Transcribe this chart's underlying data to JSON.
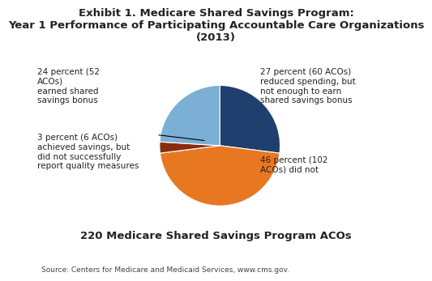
{
  "title": "Exhibit 1. Medicare Shared Savings Program:\nYear 1 Performance of Participating Accountable Care Organizations\n(2013)",
  "subtitle": "220 Medicare Shared Savings Program ACOs",
  "source": "Source: Centers for Medicare and Medicaid Services, www.cms.gov.",
  "slices": [
    27,
    46,
    3,
    24
  ],
  "colors": [
    "#1f3f6e",
    "#e87722",
    "#8b2c0e",
    "#7bafd4"
  ],
  "label_27": "27 percent (60 ACOs)\nreduced spending, but\nnot enough to earn\nshared savings bonus",
  "label_46": "46 percent (102\nACOs) did not",
  "label_3": "3 percent (6 ACOs)\nachieved savings, but\ndid not successfully\nreport quality measures",
  "label_24": "24 percent (52\nACOs)\nearned shared\nsavings bonus",
  "title_fontsize": 9.5,
  "label_fontsize": 7.5,
  "subtitle_fontsize": 9.5,
  "source_fontsize": 6.5,
  "background_color": "#ffffff",
  "startangle": 90
}
